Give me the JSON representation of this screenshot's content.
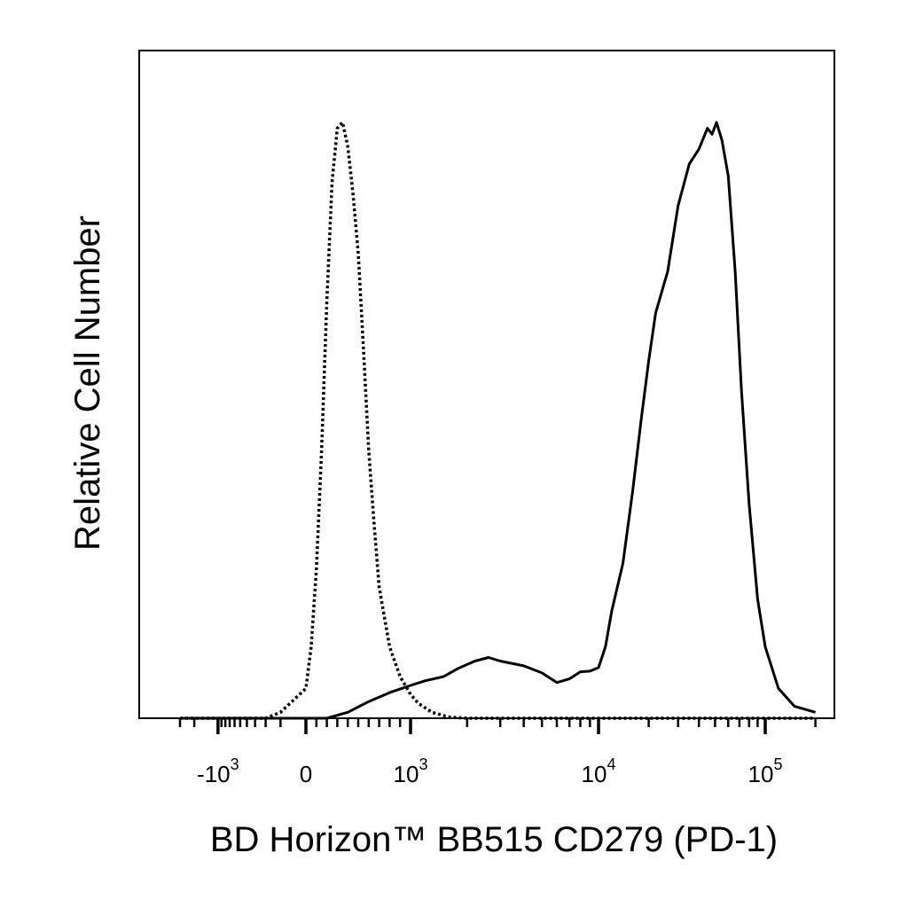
{
  "chart_data": {
    "type": "line",
    "title": "",
    "xlabel": "BD Horizon™ BB515 CD279 (PD-1)",
    "ylabel": "Relative Cell Number",
    "x_scale": "biexponential",
    "xlim": [
      -3000,
      200000
    ],
    "ylim": [
      0,
      100
    ],
    "grid": false,
    "legend": "none",
    "x_tick_labels": [
      {
        "base": "-10",
        "exp": "3",
        "value": -1000
      },
      {
        "base": "0",
        "exp": "",
        "value": 0
      },
      {
        "base": "10",
        "exp": "3",
        "value": 1000
      },
      {
        "base": "10",
        "exp": "4",
        "value": 10000
      },
      {
        "base": "10",
        "exp": "5",
        "value": 100000
      }
    ],
    "series": [
      {
        "style": "dotted",
        "color": "#000000",
        "points": [
          [
            -3000,
            0
          ],
          [
            -200,
            0
          ],
          [
            -100,
            1
          ],
          [
            0,
            5
          ],
          [
            50,
            12
          ],
          [
            100,
            25
          ],
          [
            150,
            45
          ],
          [
            200,
            70
          ],
          [
            250,
            90
          ],
          [
            300,
            99
          ],
          [
            350,
            100
          ],
          [
            400,
            96
          ],
          [
            450,
            88
          ],
          [
            500,
            78
          ],
          [
            550,
            62
          ],
          [
            600,
            45
          ],
          [
            650,
            33
          ],
          [
            700,
            22
          ],
          [
            800,
            12
          ],
          [
            900,
            7
          ],
          [
            1000,
            4
          ],
          [
            1100,
            2.5
          ],
          [
            1300,
            1
          ],
          [
            1600,
            0.2
          ],
          [
            2000,
            0
          ],
          [
            200000,
            0
          ]
        ]
      },
      {
        "style": "solid",
        "color": "#000000",
        "points": [
          [
            -3000,
            0
          ],
          [
            200,
            0
          ],
          [
            400,
            1
          ],
          [
            600,
            2.8
          ],
          [
            800,
            4.3
          ],
          [
            1000,
            5.5
          ],
          [
            1200,
            6.3
          ],
          [
            1500,
            7
          ],
          [
            1800,
            8.4
          ],
          [
            2200,
            9.6
          ],
          [
            2600,
            10.2
          ],
          [
            3000,
            9.6
          ],
          [
            4000,
            8.8
          ],
          [
            5000,
            7.6
          ],
          [
            6000,
            6
          ],
          [
            7000,
            6.6
          ],
          [
            8000,
            7.8
          ],
          [
            9000,
            7.9
          ],
          [
            10000,
            8.5
          ],
          [
            11000,
            12
          ],
          [
            12000,
            18
          ],
          [
            14000,
            26
          ],
          [
            16000,
            38
          ],
          [
            18000,
            50
          ],
          [
            20000,
            60
          ],
          [
            22000,
            68
          ],
          [
            26000,
            75
          ],
          [
            30000,
            86
          ],
          [
            35000,
            93
          ],
          [
            40000,
            95.5
          ],
          [
            45000,
            99
          ],
          [
            48000,
            98
          ],
          [
            51000,
            100
          ],
          [
            55000,
            97
          ],
          [
            60000,
            91
          ],
          [
            66000,
            75
          ],
          [
            72000,
            55
          ],
          [
            80000,
            36
          ],
          [
            90000,
            20
          ],
          [
            100000,
            12
          ],
          [
            120000,
            5
          ],
          [
            150000,
            2
          ],
          [
            200000,
            1
          ]
        ]
      }
    ]
  }
}
